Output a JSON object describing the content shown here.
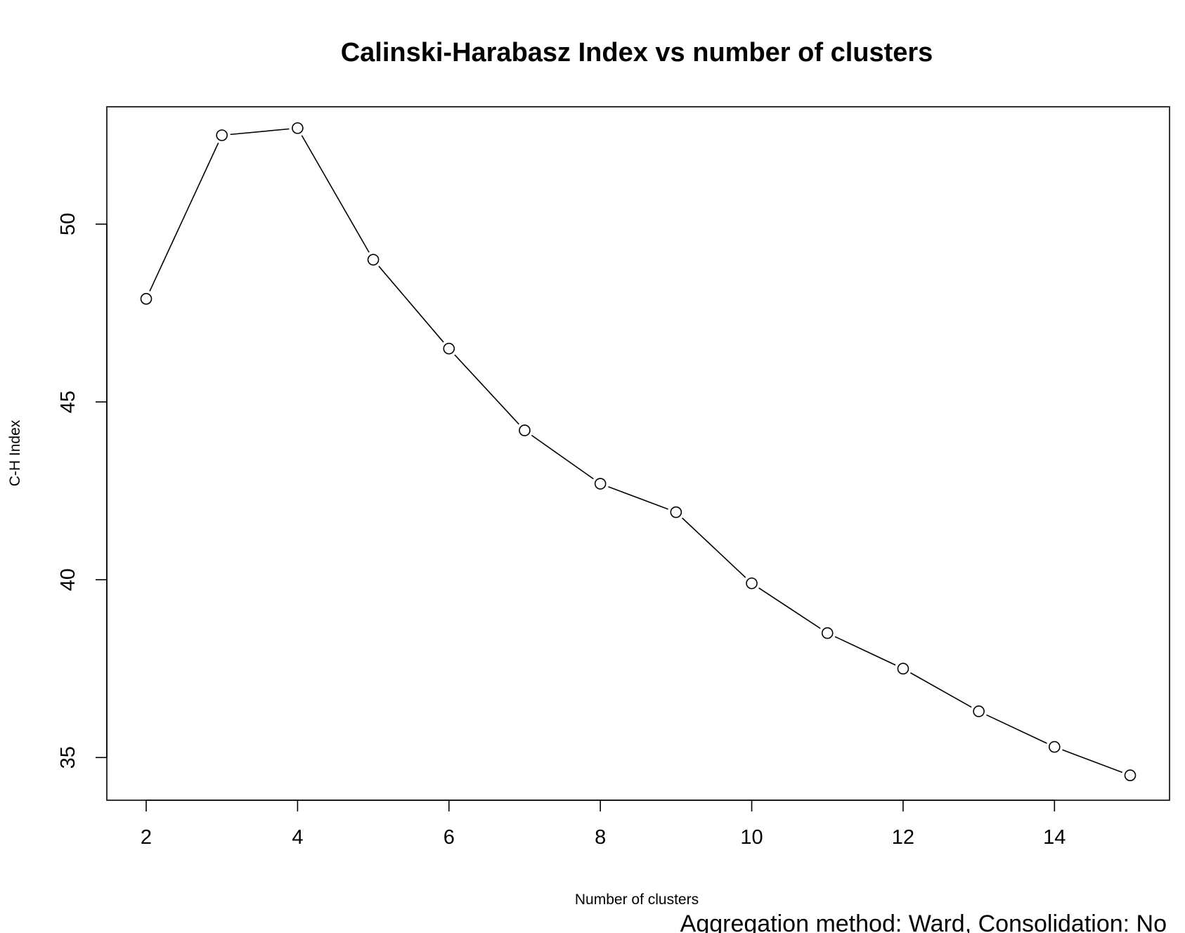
{
  "chart_data": {
    "type": "line",
    "title": "Calinski-Harabasz Index vs number of clusters",
    "xlabel": "Number of clusters",
    "ylabel": "C-H Index",
    "subtitle": "Aggregation method: Ward, Consolidation: No",
    "x": [
      2,
      3,
      4,
      5,
      6,
      7,
      8,
      9,
      10,
      11,
      12,
      13,
      14,
      15
    ],
    "series": [
      {
        "values": [
          47.9,
          52.5,
          52.7,
          49.0,
          46.5,
          44.2,
          42.7,
          41.9,
          39.9,
          38.5,
          37.5,
          36.3,
          35.3,
          34.5
        ]
      }
    ],
    "xlim": [
      1.48,
      15.52
    ],
    "ylim": [
      33.8,
      53.3
    ],
    "xticks": [
      2,
      4,
      6,
      8,
      10,
      12,
      14
    ],
    "yticks": [
      35,
      40,
      45,
      50
    ],
    "xtick_labels": [
      "2",
      "4",
      "6",
      "8",
      "10",
      "12",
      "14"
    ],
    "ytick_labels": [
      "35",
      "40",
      "45",
      "50"
    ],
    "marker": "open-circle",
    "line_color": "#000000",
    "grid": false
  }
}
